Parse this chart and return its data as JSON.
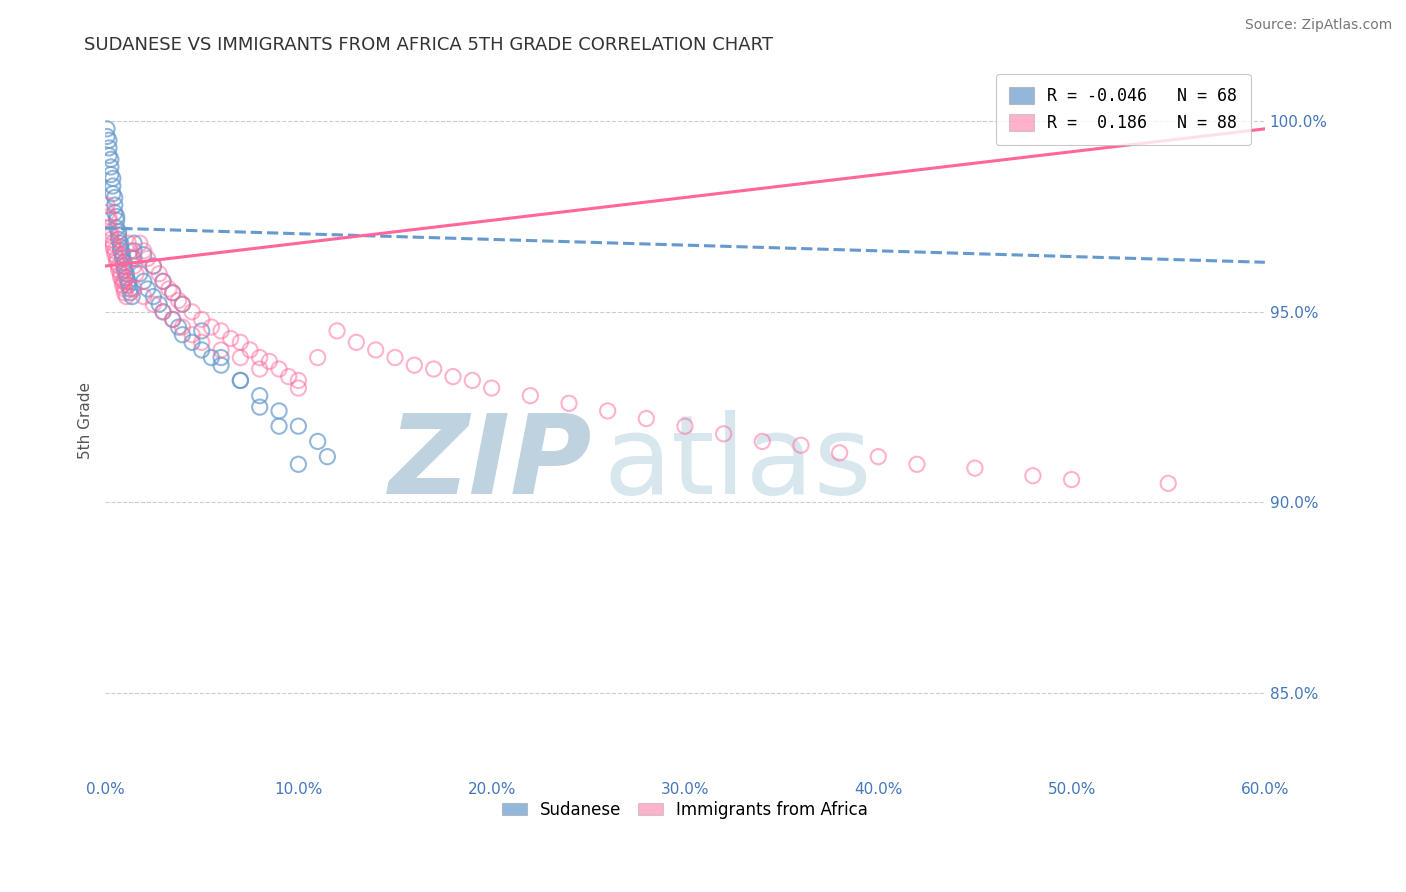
{
  "title": "SUDANESE VS IMMIGRANTS FROM AFRICA 5TH GRADE CORRELATION CHART",
  "source": "Source: ZipAtlas.com",
  "ylabel_label": "5th Grade",
  "x_min": 0.0,
  "x_max": 0.6,
  "y_min": 0.828,
  "y_max": 1.015,
  "x_ticks": [
    0.0,
    0.1,
    0.2,
    0.3,
    0.4,
    0.5,
    0.6
  ],
  "x_tick_labels": [
    "0.0%",
    "10.0%",
    "20.0%",
    "30.0%",
    "40.0%",
    "50.0%",
    "60.0%"
  ],
  "y_tick_labels": [
    "85.0%",
    "90.0%",
    "95.0%",
    "100.0%"
  ],
  "y_ticks": [
    0.85,
    0.9,
    0.95,
    1.0
  ],
  "blue_color": "#6699cc",
  "pink_color": "#ff6699",
  "blue_R": -0.046,
  "blue_N": 68,
  "pink_R": 0.186,
  "pink_N": 88,
  "watermark_zip": "ZIP",
  "watermark_atlas": "atlas",
  "watermark_color": "#ccdded",
  "blue_line_y0": 0.972,
  "blue_line_y1": 0.963,
  "pink_line_y0": 0.962,
  "pink_line_y1": 0.998,
  "blue_scatter_x": [
    0.001,
    0.001,
    0.002,
    0.002,
    0.002,
    0.003,
    0.003,
    0.003,
    0.004,
    0.004,
    0.004,
    0.005,
    0.005,
    0.005,
    0.006,
    0.006,
    0.006,
    0.007,
    0.007,
    0.007,
    0.008,
    0.008,
    0.008,
    0.009,
    0.009,
    0.01,
    0.01,
    0.01,
    0.011,
    0.011,
    0.012,
    0.012,
    0.013,
    0.013,
    0.014,
    0.015,
    0.015,
    0.015,
    0.018,
    0.02,
    0.022,
    0.025,
    0.028,
    0.03,
    0.035,
    0.038,
    0.04,
    0.045,
    0.05,
    0.055,
    0.06,
    0.07,
    0.08,
    0.09,
    0.1,
    0.11,
    0.115,
    0.02,
    0.025,
    0.03,
    0.035,
    0.04,
    0.05,
    0.06,
    0.07,
    0.08,
    0.09,
    0.1
  ],
  "blue_scatter_y": [
    0.998,
    0.996,
    0.995,
    0.993,
    0.991,
    0.99,
    0.988,
    0.986,
    0.985,
    0.983,
    0.981,
    0.98,
    0.978,
    0.976,
    0.975,
    0.974,
    0.972,
    0.971,
    0.97,
    0.969,
    0.968,
    0.967,
    0.966,
    0.965,
    0.964,
    0.963,
    0.962,
    0.961,
    0.96,
    0.959,
    0.958,
    0.957,
    0.956,
    0.955,
    0.954,
    0.968,
    0.966,
    0.964,
    0.96,
    0.958,
    0.956,
    0.954,
    0.952,
    0.95,
    0.948,
    0.946,
    0.944,
    0.942,
    0.94,
    0.938,
    0.936,
    0.932,
    0.928,
    0.924,
    0.92,
    0.916,
    0.912,
    0.965,
    0.962,
    0.958,
    0.955,
    0.952,
    0.945,
    0.938,
    0.932,
    0.925,
    0.92,
    0.91
  ],
  "pink_scatter_x": [
    0.001,
    0.001,
    0.002,
    0.002,
    0.002,
    0.003,
    0.003,
    0.003,
    0.004,
    0.004,
    0.005,
    0.005,
    0.006,
    0.006,
    0.007,
    0.007,
    0.008,
    0.008,
    0.009,
    0.009,
    0.01,
    0.01,
    0.011,
    0.012,
    0.013,
    0.014,
    0.015,
    0.016,
    0.018,
    0.02,
    0.022,
    0.025,
    0.028,
    0.03,
    0.033,
    0.035,
    0.038,
    0.04,
    0.045,
    0.05,
    0.055,
    0.06,
    0.065,
    0.07,
    0.075,
    0.08,
    0.085,
    0.09,
    0.095,
    0.1,
    0.11,
    0.12,
    0.13,
    0.14,
    0.15,
    0.16,
    0.17,
    0.18,
    0.19,
    0.2,
    0.22,
    0.24,
    0.26,
    0.28,
    0.3,
    0.32,
    0.34,
    0.36,
    0.38,
    0.4,
    0.42,
    0.45,
    0.48,
    0.5,
    0.55,
    0.01,
    0.015,
    0.02,
    0.025,
    0.03,
    0.035,
    0.04,
    0.045,
    0.05,
    0.06,
    0.07,
    0.08,
    0.1
  ],
  "pink_scatter_y": [
    0.978,
    0.976,
    0.975,
    0.974,
    0.972,
    0.971,
    0.97,
    0.969,
    0.968,
    0.967,
    0.966,
    0.965,
    0.964,
    0.963,
    0.962,
    0.961,
    0.96,
    0.959,
    0.958,
    0.957,
    0.956,
    0.955,
    0.954,
    0.968,
    0.966,
    0.964,
    0.962,
    0.96,
    0.968,
    0.966,
    0.964,
    0.962,
    0.96,
    0.958,
    0.956,
    0.955,
    0.953,
    0.952,
    0.95,
    0.948,
    0.946,
    0.945,
    0.943,
    0.942,
    0.94,
    0.938,
    0.937,
    0.935,
    0.933,
    0.932,
    0.938,
    0.945,
    0.942,
    0.94,
    0.938,
    0.936,
    0.935,
    0.933,
    0.932,
    0.93,
    0.928,
    0.926,
    0.924,
    0.922,
    0.92,
    0.918,
    0.916,
    0.915,
    0.913,
    0.912,
    0.91,
    0.909,
    0.907,
    0.906,
    0.905,
    0.958,
    0.956,
    0.954,
    0.952,
    0.95,
    0.948,
    0.946,
    0.944,
    0.942,
    0.94,
    0.938,
    0.935,
    0.93
  ]
}
